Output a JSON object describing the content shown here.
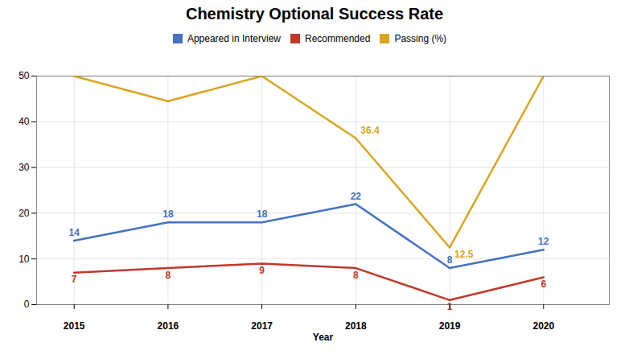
{
  "chart_data": {
    "type": "line",
    "title": "Chemistry Optional Success Rate",
    "xlabel": "Year",
    "x": [
      2015,
      2016,
      2017,
      2018,
      2019,
      2020
    ],
    "series": [
      {
        "name": "Appeared in Interview",
        "color": "#4472C4",
        "values": [
          14,
          18,
          18,
          22,
          8,
          12
        ],
        "data_labels": true
      },
      {
        "name": "Recommended",
        "color": "#C0392B",
        "values": [
          7,
          8,
          9,
          8,
          1,
          6
        ],
        "data_labels": true
      },
      {
        "name": "Passing (%)",
        "color": "#DAA520",
        "values": [
          50,
          44.5,
          50,
          36.4,
          12.5,
          50
        ],
        "data_labels": false
      }
    ],
    "annotations": [
      {
        "text": "36.4",
        "x": 2018,
        "y": 36.4,
        "series": "Passing (%)"
      },
      {
        "text": "12.5",
        "x": 2019,
        "y": 12.5,
        "series": "Passing (%)"
      }
    ],
    "xlim": [
      2014.6,
      2020.7
    ],
    "xticks": [
      2015,
      2016,
      2017,
      2018,
      2019,
      2020
    ],
    "ylim": [
      0,
      50
    ],
    "yticks": [
      0,
      10,
      20,
      30,
      40,
      50
    ],
    "grid": true,
    "legend": "top"
  }
}
